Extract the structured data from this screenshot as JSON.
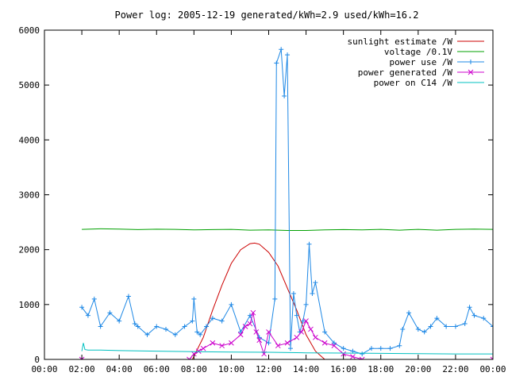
{
  "chart_data": {
    "type": "line",
    "title": "Power log: 2005-12-19 generated/kWh=2.9 used/kWh=16.2",
    "xlabel": "",
    "ylabel": "",
    "x_range_hours": [
      0,
      24
    ],
    "ylim": [
      0,
      6000
    ],
    "y_ticks": [
      0,
      1000,
      2000,
      3000,
      4000,
      5000,
      6000
    ],
    "y_tick_labels": [
      "0",
      "1000",
      "2000",
      "3000",
      "4000",
      "5000",
      "6000"
    ],
    "x_tick_labels": [
      "00:00",
      "02:00",
      "04:00",
      "06:00",
      "08:00",
      "10:00",
      "12:00",
      "14:00",
      "16:00",
      "18:00",
      "20:00",
      "22:00",
      "00:00"
    ],
    "grid": false,
    "legend_position": "top-right",
    "series": [
      {
        "name": "sunlight estimate /W",
        "color": "#cc0000",
        "marker": "none",
        "x": [
          "07:55",
          "08:30",
          "09:00",
          "09:30",
          "10:00",
          "10:30",
          "11:00",
          "11:15",
          "11:30",
          "12:00",
          "12:30",
          "13:00",
          "13:30",
          "14:00",
          "14:30",
          "15:00"
        ],
        "values": [
          0,
          400,
          900,
          1350,
          1750,
          2000,
          2110,
          2120,
          2100,
          1950,
          1700,
          1300,
          900,
          450,
          150,
          0
        ]
      },
      {
        "name": "voltage /0.1V",
        "color": "#00a000",
        "marker": "none",
        "x": [
          "02:00",
          "03:00",
          "04:00",
          "05:00",
          "06:00",
          "07:00",
          "08:00",
          "09:00",
          "10:00",
          "11:00",
          "12:00",
          "13:00",
          "14:00",
          "15:00",
          "16:00",
          "17:00",
          "18:00",
          "19:00",
          "20:00",
          "21:00",
          "22:00",
          "23:00",
          "24:00"
        ],
        "values": [
          2370,
          2380,
          2375,
          2365,
          2372,
          2370,
          2360,
          2365,
          2370,
          2355,
          2360,
          2350,
          2350,
          2360,
          2365,
          2360,
          2370,
          2355,
          2370,
          2355,
          2370,
          2375,
          2370
        ]
      },
      {
        "name": "power use /W",
        "color": "#1e88e5",
        "marker": "plus",
        "x": [
          "02:00",
          "02:20",
          "02:40",
          "03:00",
          "03:30",
          "04:00",
          "04:30",
          "04:50",
          "05:00",
          "05:30",
          "06:00",
          "06:30",
          "07:00",
          "07:30",
          "07:55",
          "08:00",
          "08:10",
          "08:20",
          "08:40",
          "09:00",
          "09:30",
          "10:00",
          "10:30",
          "11:00",
          "11:30",
          "12:00",
          "12:20",
          "12:25",
          "12:40",
          "12:50",
          "13:00",
          "13:10",
          "13:20",
          "13:30",
          "13:40",
          "13:50",
          "14:00",
          "14:10",
          "14:20",
          "14:30",
          "15:00",
          "15:30",
          "16:00",
          "16:30",
          "17:00",
          "17:30",
          "18:00",
          "18:30",
          "19:00",
          "19:10",
          "19:30",
          "20:00",
          "20:20",
          "20:40",
          "21:00",
          "21:30",
          "22:00",
          "22:30",
          "22:45",
          "23:00",
          "23:30",
          "24:00"
        ],
        "values": [
          950,
          800,
          1100,
          600,
          850,
          700,
          1150,
          650,
          600,
          450,
          600,
          550,
          450,
          600,
          700,
          1100,
          500,
          450,
          600,
          750,
          700,
          1000,
          500,
          800,
          400,
          300,
          1100,
          5400,
          5650,
          4800,
          5550,
          200,
          1200,
          800,
          500,
          700,
          1000,
          2100,
          1200,
          1400,
          500,
          300,
          200,
          150,
          100,
          200,
          200,
          200,
          250,
          550,
          850,
          550,
          500,
          600,
          750,
          600,
          600,
          650,
          950,
          800,
          750,
          600
        ]
      },
      {
        "name": "power generated /W",
        "color": "#cc00cc",
        "marker": "x",
        "x": [
          "02:00",
          "07:45",
          "08:00",
          "08:15",
          "08:30",
          "09:00",
          "09:30",
          "10:00",
          "10:30",
          "10:45",
          "11:00",
          "11:10",
          "11:20",
          "11:30",
          "11:45",
          "12:00",
          "12:30",
          "13:00",
          "13:30",
          "13:45",
          "14:00",
          "14:15",
          "14:30",
          "15:00",
          "15:30",
          "16:00",
          "16:30",
          "17:00",
          "24:00"
        ],
        "values": [
          0,
          0,
          100,
          150,
          200,
          300,
          250,
          300,
          450,
          600,
          650,
          850,
          500,
          350,
          100,
          500,
          250,
          300,
          400,
          500,
          700,
          550,
          400,
          300,
          250,
          100,
          50,
          0,
          0
        ]
      },
      {
        "name": "power on C14 /W",
        "color": "#00c0c0",
        "marker": "none",
        "x": [
          "02:00",
          "02:05",
          "02:10",
          "02:20",
          "03:00",
          "04:00",
          "05:00",
          "06:00",
          "08:00",
          "10:00",
          "12:00",
          "14:00",
          "16:00",
          "18:00",
          "20:00",
          "22:00",
          "24:00"
        ],
        "values": [
          150,
          300,
          180,
          170,
          170,
          160,
          155,
          150,
          140,
          135,
          130,
          120,
          115,
          110,
          105,
          100,
          100
        ]
      }
    ]
  }
}
